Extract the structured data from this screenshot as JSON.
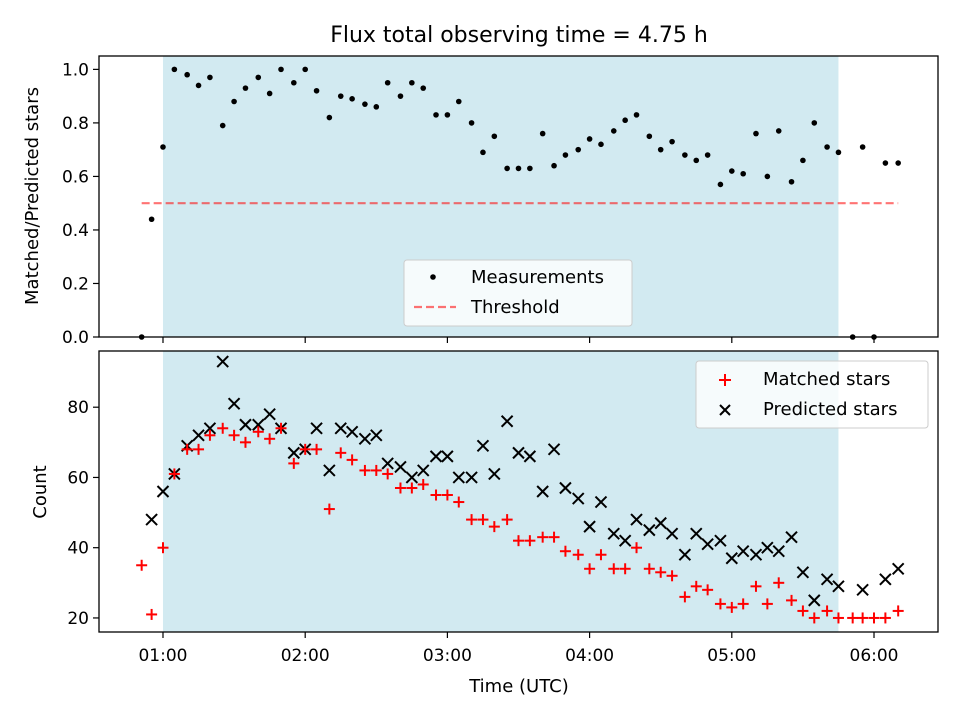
{
  "title": "Flux total observing time = 4.75 h",
  "colors": {
    "span": "#add8e6",
    "measurements": "#000000",
    "threshold": "#ff0000",
    "matched": "#ff0000",
    "predicted": "#000000"
  },
  "xaxis": {
    "label": "Time (UTC)",
    "unit": "hours after 00:00 UTC",
    "xlim": [
      0.55,
      6.45
    ],
    "ticks": [
      1,
      2,
      3,
      4,
      5,
      6
    ],
    "tick_labels": [
      "01:00",
      "02:00",
      "03:00",
      "04:00",
      "05:00",
      "06:00"
    ]
  },
  "shaded_span": {
    "start": 1.0,
    "end": 5.75
  },
  "chart_data": [
    {
      "type": "scatter",
      "panel": "top",
      "title": "Flux total observing time = 4.75 h",
      "ylabel": "Matched/Predicted stars",
      "ylim": [
        0.0,
        1.05
      ],
      "yticks": [
        0.0,
        0.2,
        0.4,
        0.6,
        0.8,
        1.0
      ],
      "ytick_labels": [
        "0.0",
        "0.2",
        "0.4",
        "0.6",
        "0.8",
        "1.0"
      ],
      "legend_position": "lower-center",
      "series": [
        {
          "name": "Measurements",
          "marker": "dot",
          "x": [
            0.85,
            0.92,
            1.0,
            1.08,
            1.17,
            1.25,
            1.33,
            1.42,
            1.5,
            1.58,
            1.67,
            1.75,
            1.83,
            1.92,
            2.0,
            2.08,
            2.17,
            2.25,
            2.33,
            2.42,
            2.5,
            2.58,
            2.67,
            2.75,
            2.83,
            2.92,
            3.0,
            3.08,
            3.17,
            3.25,
            3.33,
            3.42,
            3.5,
            3.58,
            3.67,
            3.75,
            3.83,
            3.92,
            4.0,
            4.08,
            4.17,
            4.25,
            4.33,
            4.42,
            4.5,
            4.58,
            4.67,
            4.75,
            4.83,
            4.92,
            5.0,
            5.08,
            5.17,
            5.25,
            5.33,
            5.42,
            5.5,
            5.58,
            5.67,
            5.75,
            5.85,
            5.92,
            6.0,
            6.08,
            6.17
          ],
          "y": [
            0.0,
            0.44,
            0.71,
            1.0,
            0.98,
            0.94,
            0.97,
            0.79,
            0.88,
            0.93,
            0.97,
            0.91,
            1.0,
            0.95,
            1.0,
            0.92,
            0.82,
            0.9,
            0.89,
            0.87,
            0.86,
            0.95,
            0.9,
            0.95,
            0.93,
            0.83,
            0.83,
            0.88,
            0.8,
            0.69,
            0.75,
            0.63,
            0.63,
            0.63,
            0.76,
            0.64,
            0.68,
            0.7,
            0.74,
            0.72,
            0.77,
            0.81,
            0.83,
            0.75,
            0.7,
            0.73,
            0.68,
            0.66,
            0.68,
            0.57,
            0.62,
            0.61,
            0.76,
            0.6,
            0.77,
            0.58,
            0.66,
            0.8,
            0.71,
            0.69,
            0.0,
            0.71,
            0.0,
            0.65,
            0.65
          ]
        },
        {
          "name": "Threshold",
          "marker": "dashed-line",
          "x": [
            0.85,
            6.17
          ],
          "y": [
            0.5,
            0.5
          ]
        }
      ]
    },
    {
      "type": "scatter",
      "panel": "bottom",
      "xlabel": "Time (UTC)",
      "ylabel": "Count",
      "ylim": [
        16,
        96
      ],
      "yticks": [
        20,
        40,
        60,
        80
      ],
      "ytick_labels": [
        "20",
        "40",
        "60",
        "80"
      ],
      "legend_position": "upper-right",
      "series": [
        {
          "name": "Matched stars",
          "marker": "plus",
          "x": [
            0.85,
            0.92,
            1.0,
            1.08,
            1.17,
            1.25,
            1.33,
            1.42,
            1.5,
            1.58,
            1.67,
            1.75,
            1.83,
            1.92,
            2.0,
            2.08,
            2.17,
            2.25,
            2.33,
            2.42,
            2.5,
            2.58,
            2.67,
            2.75,
            2.83,
            2.92,
            3.0,
            3.08,
            3.17,
            3.25,
            3.33,
            3.42,
            3.5,
            3.58,
            3.67,
            3.75,
            3.83,
            3.92,
            4.0,
            4.08,
            4.17,
            4.25,
            4.33,
            4.42,
            4.5,
            4.58,
            4.67,
            4.75,
            4.83,
            4.92,
            5.0,
            5.08,
            5.17,
            5.25,
            5.33,
            5.42,
            5.5,
            5.58,
            5.67,
            5.75,
            5.85,
            5.92,
            6.0,
            6.08,
            6.17
          ],
          "y": [
            35,
            21,
            40,
            61,
            68,
            68,
            72,
            74,
            72,
            70,
            73,
            71,
            74,
            64,
            68,
            68,
            51,
            67,
            65,
            62,
            62,
            61,
            57,
            57,
            58,
            55,
            55,
            53,
            48,
            48,
            46,
            48,
            42,
            42,
            43,
            43,
            39,
            38,
            34,
            38,
            34,
            34,
            40,
            34,
            33,
            32,
            26,
            29,
            28,
            24,
            23,
            24,
            29,
            24,
            30,
            25,
            22,
            20,
            22,
            20,
            20,
            20,
            20,
            20,
            22
          ]
        },
        {
          "name": "Predicted stars",
          "marker": "x",
          "x": [
            0.92,
            1.0,
            1.08,
            1.17,
            1.25,
            1.33,
            1.42,
            1.5,
            1.58,
            1.67,
            1.75,
            1.83,
            1.92,
            2.0,
            2.08,
            2.17,
            2.25,
            2.33,
            2.42,
            2.5,
            2.58,
            2.67,
            2.75,
            2.83,
            2.92,
            3.0,
            3.08,
            3.17,
            3.25,
            3.33,
            3.42,
            3.5,
            3.58,
            3.67,
            3.75,
            3.83,
            3.92,
            4.0,
            4.08,
            4.17,
            4.25,
            4.33,
            4.42,
            4.5,
            4.58,
            4.67,
            4.75,
            4.83,
            4.92,
            5.0,
            5.08,
            5.17,
            5.25,
            5.33,
            5.42,
            5.5,
            5.58,
            5.67,
            5.75,
            5.92,
            6.08,
            6.17
          ],
          "y": [
            48,
            56,
            61,
            69,
            72,
            74,
            93,
            81,
            75,
            75,
            78,
            74,
            67,
            68,
            74,
            62,
            74,
            73,
            71,
            72,
            64,
            63,
            60,
            62,
            66,
            66,
            60,
            60,
            69,
            61,
            76,
            67,
            66,
            56,
            68,
            57,
            54,
            46,
            53,
            44,
            42,
            48,
            45,
            47,
            44,
            38,
            44,
            41,
            42,
            37,
            39,
            38,
            40,
            39,
            43,
            33,
            25,
            31,
            29,
            28,
            31,
            34
          ]
        }
      ]
    }
  ]
}
